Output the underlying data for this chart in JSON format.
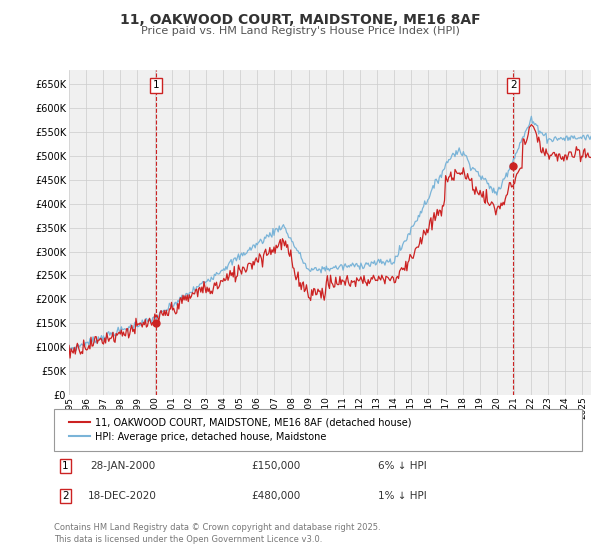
{
  "title": "11, OAKWOOD COURT, MAIDSTONE, ME16 8AF",
  "subtitle": "Price paid vs. HM Land Registry's House Price Index (HPI)",
  "background_color": "#ffffff",
  "grid_color": "#cccccc",
  "plot_bg_color": "#f0f0f0",
  "hpi_color": "#7ab4d8",
  "price_color": "#cc2222",
  "vline_color": "#cc2222",
  "ylim": [
    0,
    680000
  ],
  "yticks": [
    0,
    50000,
    100000,
    150000,
    200000,
    250000,
    300000,
    350000,
    400000,
    450000,
    500000,
    550000,
    600000,
    650000
  ],
  "xlim_start": 1995.0,
  "xlim_end": 2025.5,
  "sale1_x": 2000.07,
  "sale1_y": 150000,
  "sale2_x": 2020.96,
  "sale2_y": 480000,
  "legend_price_label": "11, OAKWOOD COURT, MAIDSTONE, ME16 8AF (detached house)",
  "legend_hpi_label": "HPI: Average price, detached house, Maidstone",
  "annotation1_date": "28-JAN-2000",
  "annotation1_price": "£150,000",
  "annotation1_hpi": "6% ↓ HPI",
  "annotation2_date": "18-DEC-2020",
  "annotation2_price": "£480,000",
  "annotation2_hpi": "1% ↓ HPI",
  "footer": "Contains HM Land Registry data © Crown copyright and database right 2025.\nThis data is licensed under the Open Government Licence v3.0."
}
